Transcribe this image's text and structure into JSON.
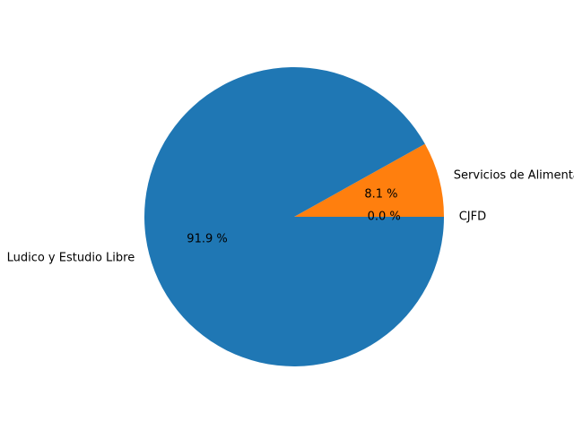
{
  "chart_data": {
    "type": "pie",
    "title": "",
    "legend": "none",
    "grid": false,
    "slices": [
      {
        "label": "CJFD",
        "value": 0.0,
        "pct_label": "0.0 %",
        "color": "#2ca02c"
      },
      {
        "label": "Servicios de Alimentacion",
        "value": 8.1,
        "pct_label": "8.1 %",
        "color": "#ff7f0e"
      },
      {
        "label": "Ludico y Estudio Libre",
        "value": 91.9,
        "pct_label": "91.9 %",
        "color": "#1f77b4"
      }
    ]
  }
}
